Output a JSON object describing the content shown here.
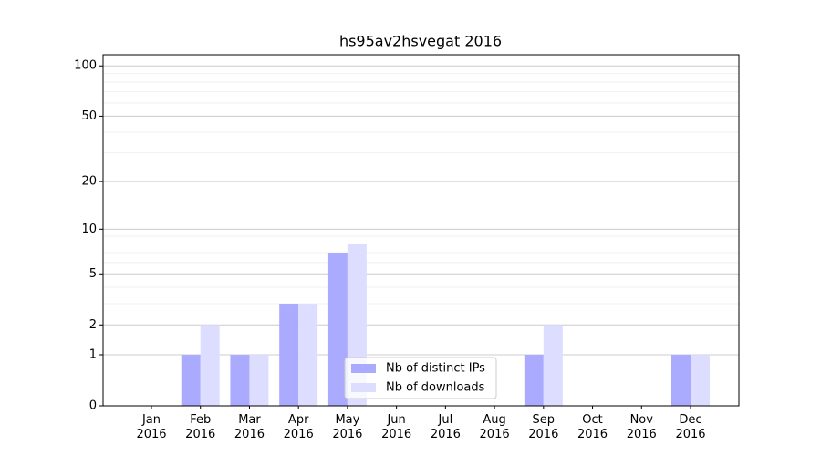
{
  "chart_data": {
    "type": "bar",
    "title": "hs95av2hsvegat 2016",
    "categories": [
      "Jan\n2016",
      "Feb\n2016",
      "Mar\n2016",
      "Apr\n2016",
      "May\n2016",
      "Jun\n2016",
      "Jul\n2016",
      "Aug\n2016",
      "Sep\n2016",
      "Oct\n2016",
      "Nov\n2016",
      "Dec\n2016"
    ],
    "series": [
      {
        "name": "Nb of distinct IPs",
        "color": "#aaaaff",
        "values": [
          0,
          1,
          1,
          3,
          7,
          0,
          0,
          0,
          1,
          0,
          0,
          1
        ]
      },
      {
        "name": "Nb of downloads",
        "color": "#ddddff",
        "values": [
          0,
          2,
          1,
          3,
          8,
          0,
          0,
          0,
          2,
          0,
          0,
          1
        ]
      }
    ],
    "yscale": "log1p",
    "ylim": [
      0,
      116.5
    ],
    "yticks": [
      0,
      1,
      2,
      5,
      10,
      20,
      50,
      100
    ],
    "minor_yticks": [
      3,
      4,
      6,
      7,
      8,
      9,
      30,
      40,
      60,
      70,
      80,
      90
    ],
    "grid": true,
    "legend": "lower center"
  }
}
